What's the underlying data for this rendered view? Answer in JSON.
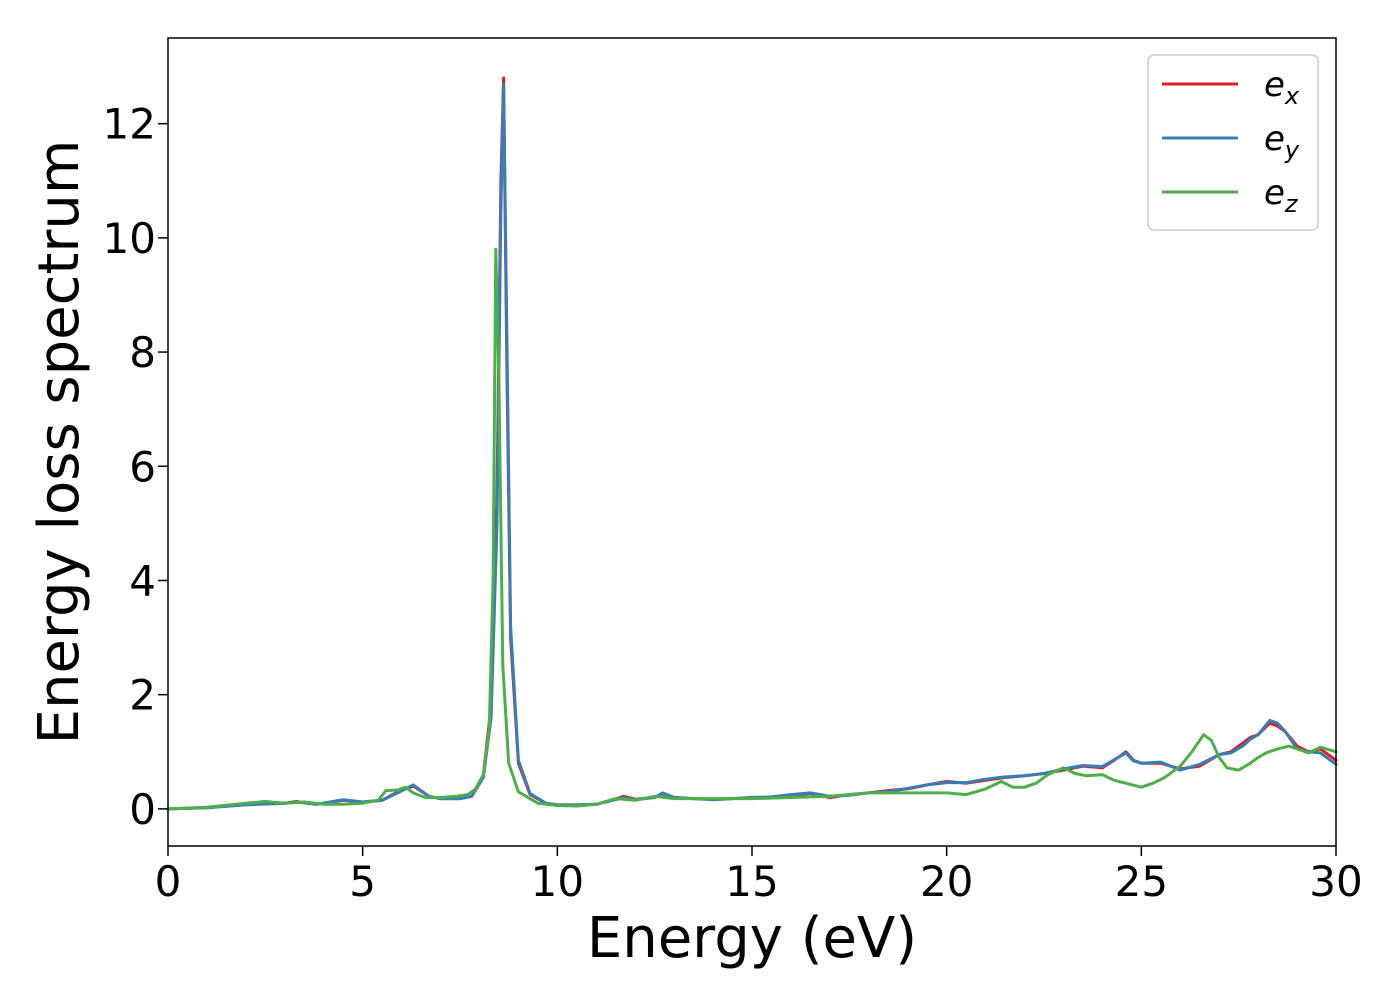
{
  "chart_data": {
    "type": "line",
    "xlabel": "Energy (eV)",
    "ylabel": "Energy loss spectrum",
    "xlim": [
      0,
      30
    ],
    "ylim": [
      -0.65,
      13.5
    ],
    "xticks": [
      0,
      5,
      10,
      15,
      20,
      25,
      30
    ],
    "yticks": [
      0,
      2,
      4,
      6,
      8,
      10,
      12
    ],
    "grid": false,
    "legend_position": "top-right",
    "series": [
      {
        "name": "e_x",
        "label_main": "e",
        "label_sub": "x",
        "color": "#e41a1c",
        "x": [
          0,
          1,
          2,
          3,
          3.3,
          3.8,
          4.5,
          5,
          5.5,
          5.9,
          6.3,
          6.7,
          7,
          7.5,
          7.8,
          8.1,
          8.3,
          8.45,
          8.55,
          8.62,
          8.7,
          8.8,
          9,
          9.3,
          9.7,
          10,
          10.5,
          11,
          11.5,
          11.7,
          12,
          12.5,
          12.7,
          13,
          13.5,
          14,
          14.5,
          15,
          15.5,
          16,
          16.5,
          17,
          17.5,
          18,
          18.5,
          19,
          19.5,
          20,
          20.5,
          21,
          21.5,
          22,
          22.5,
          23,
          23.5,
          24,
          24.3,
          24.6,
          24.8,
          25,
          25.5,
          26,
          26.5,
          27,
          27.3,
          27.6,
          27.8,
          28,
          28.3,
          28.5,
          28.7,
          29,
          29.3,
          29.6,
          30
        ],
        "y": [
          0.0,
          0.02,
          0.08,
          0.1,
          0.13,
          0.08,
          0.15,
          0.12,
          0.15,
          0.3,
          0.4,
          0.22,
          0.18,
          0.18,
          0.22,
          0.6,
          1.8,
          5.5,
          11.0,
          12.8,
          8.0,
          3.0,
          0.8,
          0.25,
          0.1,
          0.07,
          0.07,
          0.08,
          0.17,
          0.22,
          0.17,
          0.2,
          0.27,
          0.2,
          0.18,
          0.17,
          0.18,
          0.2,
          0.2,
          0.24,
          0.27,
          0.2,
          0.25,
          0.28,
          0.32,
          0.35,
          0.42,
          0.48,
          0.45,
          0.5,
          0.55,
          0.58,
          0.62,
          0.68,
          0.75,
          0.72,
          0.85,
          1.0,
          0.85,
          0.8,
          0.8,
          0.7,
          0.75,
          0.95,
          1.0,
          1.15,
          1.25,
          1.3,
          1.5,
          1.45,
          1.35,
          1.1,
          1.0,
          1.05,
          0.85
        ]
      },
      {
        "name": "e_y",
        "label_main": "e",
        "label_sub": "y",
        "color": "#377eb8",
        "x": [
          0,
          1,
          2,
          3,
          3.3,
          3.8,
          4.5,
          5,
          5.5,
          5.9,
          6.3,
          6.7,
          7,
          7.5,
          7.8,
          8.1,
          8.3,
          8.45,
          8.55,
          8.62,
          8.7,
          8.8,
          9,
          9.3,
          9.7,
          10,
          10.5,
          11,
          11.5,
          11.7,
          12,
          12.5,
          12.7,
          13,
          13.5,
          14,
          14.5,
          15,
          15.5,
          16,
          16.5,
          17,
          17.5,
          18,
          18.5,
          19,
          19.5,
          20,
          20.5,
          21,
          21.5,
          22,
          22.5,
          23,
          23.5,
          24,
          24.3,
          24.6,
          24.8,
          25,
          25.5,
          26,
          26.5,
          27,
          27.3,
          27.6,
          27.8,
          28,
          28.3,
          28.5,
          28.7,
          29,
          29.3,
          29.6,
          30
        ],
        "y": [
          0.0,
          0.02,
          0.07,
          0.1,
          0.12,
          0.08,
          0.16,
          0.12,
          0.15,
          0.28,
          0.42,
          0.22,
          0.18,
          0.18,
          0.22,
          0.55,
          1.6,
          5.0,
          10.5,
          12.7,
          8.5,
          3.2,
          0.85,
          0.27,
          0.1,
          0.07,
          0.07,
          0.08,
          0.16,
          0.2,
          0.16,
          0.2,
          0.28,
          0.2,
          0.18,
          0.16,
          0.18,
          0.2,
          0.21,
          0.25,
          0.28,
          0.22,
          0.24,
          0.28,
          0.3,
          0.36,
          0.42,
          0.46,
          0.46,
          0.52,
          0.56,
          0.58,
          0.62,
          0.7,
          0.76,
          0.74,
          0.86,
          0.98,
          0.84,
          0.8,
          0.82,
          0.68,
          0.78,
          0.95,
          0.98,
          1.1,
          1.22,
          1.3,
          1.55,
          1.5,
          1.35,
          1.05,
          1.0,
          0.98,
          0.78
        ]
      },
      {
        "name": "e_z",
        "label_main": "e",
        "label_sub": "z",
        "color": "#4daf4a",
        "x": [
          0,
          1,
          2,
          2.5,
          3,
          3.5,
          4,
          4.5,
          5,
          5.4,
          5.6,
          5.9,
          6.1,
          6.3,
          6.6,
          7,
          7.4,
          7.7,
          7.9,
          8.1,
          8.25,
          8.35,
          8.42,
          8.5,
          8.6,
          8.75,
          9,
          9.5,
          10,
          10.5,
          11,
          11.5,
          12,
          12.5,
          13,
          14,
          15,
          16,
          17,
          18,
          19,
          19.5,
          20,
          20.5,
          21,
          21.4,
          21.7,
          22,
          22.3,
          22.6,
          23,
          23.3,
          23.6,
          24,
          24.3,
          24.6,
          25,
          25.3,
          25.6,
          26,
          26.3,
          26.6,
          26.8,
          27,
          27.2,
          27.5,
          27.8,
          28,
          28.2,
          28.5,
          28.8,
          29,
          29.3,
          29.6,
          30
        ],
        "y": [
          0.0,
          0.03,
          0.1,
          0.13,
          0.1,
          0.12,
          0.08,
          0.08,
          0.1,
          0.15,
          0.32,
          0.33,
          0.38,
          0.28,
          0.2,
          0.2,
          0.22,
          0.25,
          0.35,
          0.6,
          1.4,
          4.0,
          9.8,
          7.5,
          2.5,
          0.8,
          0.3,
          0.1,
          0.06,
          0.05,
          0.08,
          0.18,
          0.15,
          0.22,
          0.18,
          0.18,
          0.18,
          0.2,
          0.22,
          0.28,
          0.28,
          0.28,
          0.28,
          0.25,
          0.35,
          0.48,
          0.38,
          0.38,
          0.45,
          0.6,
          0.72,
          0.62,
          0.58,
          0.6,
          0.5,
          0.45,
          0.38,
          0.45,
          0.55,
          0.75,
          1.0,
          1.3,
          1.2,
          0.9,
          0.72,
          0.68,
          0.8,
          0.9,
          0.98,
          1.05,
          1.1,
          1.05,
          0.98,
          1.08,
          1.0
        ]
      }
    ]
  }
}
